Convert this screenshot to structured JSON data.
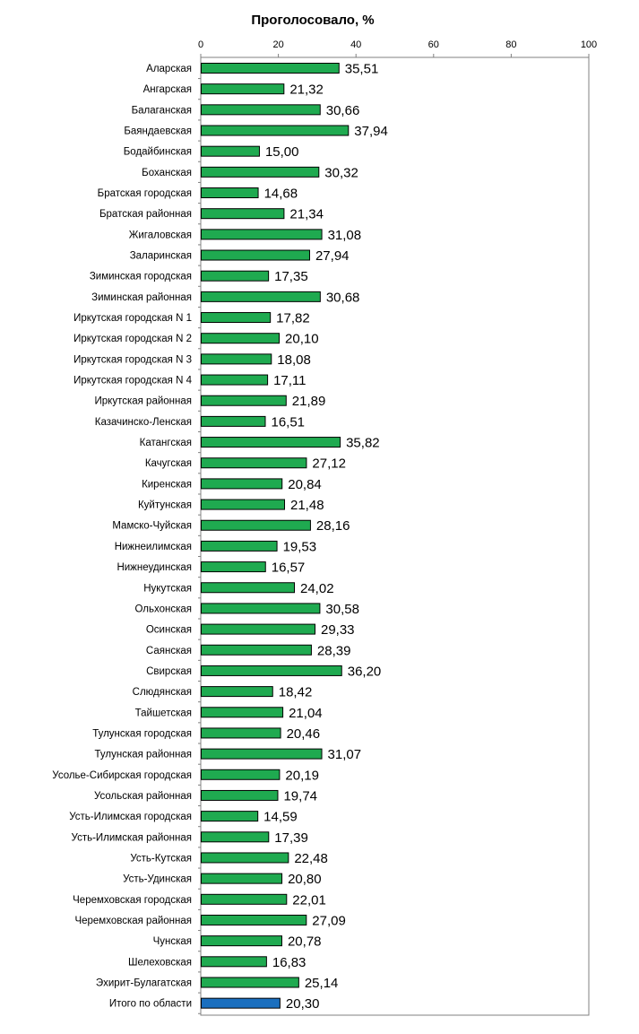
{
  "chart_data": {
    "type": "bar",
    "orientation": "horizontal",
    "title": "Проголосовало, %",
    "xlim": [
      0,
      100
    ],
    "x_ticks": [
      "0",
      "20",
      "40",
      "60",
      "80",
      "100"
    ],
    "x_tick_values": [
      0,
      20,
      40,
      60,
      80,
      100
    ],
    "axis_position": "top",
    "grid": false,
    "legend": "none",
    "colors": {
      "bar": "#1faa50",
      "total_bar": "#1a6fbf",
      "border": "#000000"
    },
    "categories": [
      "Аларская",
      "Ангарская",
      "Балаганская",
      "Баяндаевская",
      "Бодайбинская",
      "Боханская",
      "Братская городская",
      "Братская районная",
      "Жигаловская",
      "Заларинская",
      "Зиминская городская",
      "Зиминская районная",
      "Иркутская городская N 1",
      "Иркутская городская N 2",
      "Иркутская городская N 3",
      "Иркутская городская N 4",
      "Иркутская районная",
      "Казачинско-Ленская",
      "Катангская",
      "Качугская",
      "Киренская",
      "Куйтунская",
      "Мамско-Чуйская",
      "Нижнеилимская",
      "Нижнеудинская",
      "Нукутская",
      "Ольхонская",
      "Осинская",
      "Саянская",
      "Свирская",
      "Слюдянская",
      "Тайшетская",
      "Тулунская городская",
      "Тулунская районная",
      "Усолье-Сибирская городская",
      "Усольская районная",
      "Усть-Илимская городская",
      "Усть-Илимская районная",
      "Усть-Кутская",
      "Усть-Удинская",
      "Черемховская городская",
      "Черемховская районная",
      "Чунская",
      "Шелеховская",
      "Эхирит-Булагатская",
      "Итого по области"
    ],
    "values": [
      35.51,
      21.32,
      30.66,
      37.94,
      15.0,
      30.32,
      14.68,
      21.34,
      31.08,
      27.94,
      17.35,
      30.68,
      17.82,
      20.1,
      18.08,
      17.11,
      21.89,
      16.51,
      35.82,
      27.12,
      20.84,
      21.48,
      28.16,
      19.53,
      16.57,
      24.02,
      30.58,
      29.33,
      28.39,
      36.2,
      18.42,
      21.04,
      20.46,
      31.07,
      20.19,
      19.74,
      14.59,
      17.39,
      22.48,
      20.8,
      22.01,
      27.09,
      20.78,
      16.83,
      25.14,
      20.3
    ],
    "value_labels": [
      "35,51",
      "21,32",
      "30,66",
      "37,94",
      "15,00",
      "30,32",
      "14,68",
      "21,34",
      "31,08",
      "27,94",
      "17,35",
      "30,68",
      "17,82",
      "20,10",
      "18,08",
      "17,11",
      "21,89",
      "16,51",
      "35,82",
      "27,12",
      "20,84",
      "21,48",
      "28,16",
      "19,53",
      "16,57",
      "24,02",
      "30,58",
      "29,33",
      "28,39",
      "36,20",
      "18,42",
      "21,04",
      "20,46",
      "31,07",
      "20,19",
      "19,74",
      "14,59",
      "17,39",
      "22,48",
      "20,80",
      "22,01",
      "27,09",
      "20,78",
      "16,83",
      "25,14",
      "20,30"
    ]
  }
}
